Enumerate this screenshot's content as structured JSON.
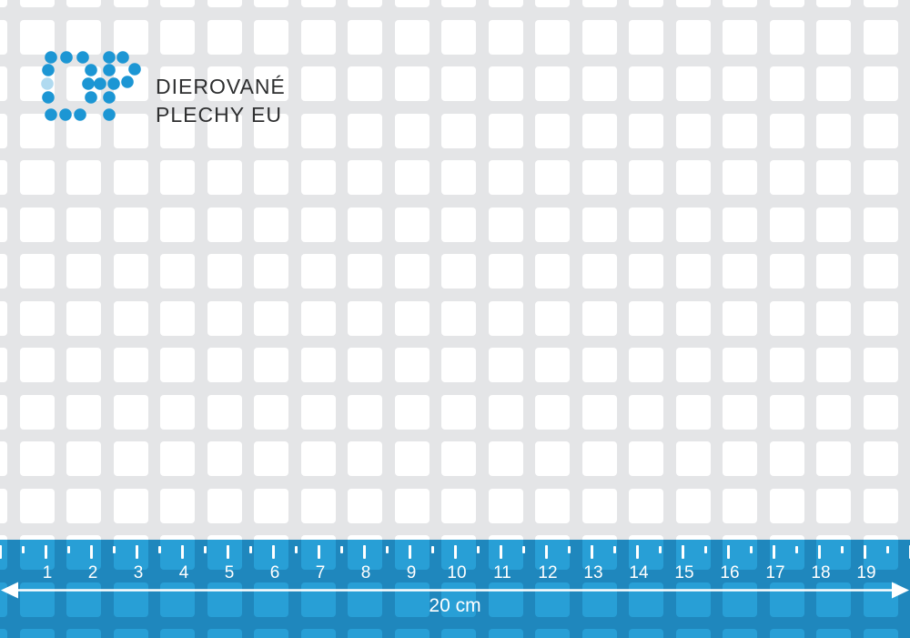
{
  "brand": {
    "logo_monogram": "DP",
    "name_line1": "DIEROVANÉ",
    "name_line2": "PLECHY EU",
    "dot_color": "#1c96d4",
    "text_color": "#2e2f30"
  },
  "sheet": {
    "hole_fill": "#ffffff",
    "metal_color": "#e4e5e7"
  },
  "ruler": {
    "numbers": [
      "1",
      "2",
      "3",
      "4",
      "5",
      "6",
      "7",
      "8",
      "9",
      "10",
      "11",
      "12",
      "13",
      "14",
      "15",
      "16",
      "17",
      "18",
      "19"
    ],
    "length_label": "20 cm",
    "overlay_color_light": "#289fd6",
    "overlay_color_dark": "#1f87bd",
    "marking_color": "#ffffff"
  }
}
